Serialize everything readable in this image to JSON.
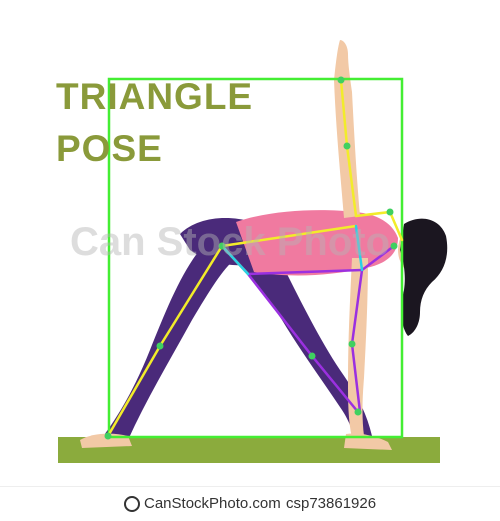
{
  "title": {
    "line1": "TRIANGLE",
    "line2": "POSE"
  },
  "watermark": {
    "text": "Can Stock Photo"
  },
  "footer": {
    "brand": "CanStockPhoto.com",
    "image_id": "csp73861926"
  },
  "colors": {
    "title": "#8a9a3a",
    "bounding_box": "#44ee33",
    "mat": "#8bab3d",
    "skeleton_yellow": "#f2ec2a",
    "skeleton_purple": "#9b30e0",
    "skeleton_cyan": "#2ad0e6",
    "top": "#f07aa0",
    "leggings": "#4a2a7a",
    "skin": "#f2c9a6",
    "hair": "#1b1620"
  }
}
